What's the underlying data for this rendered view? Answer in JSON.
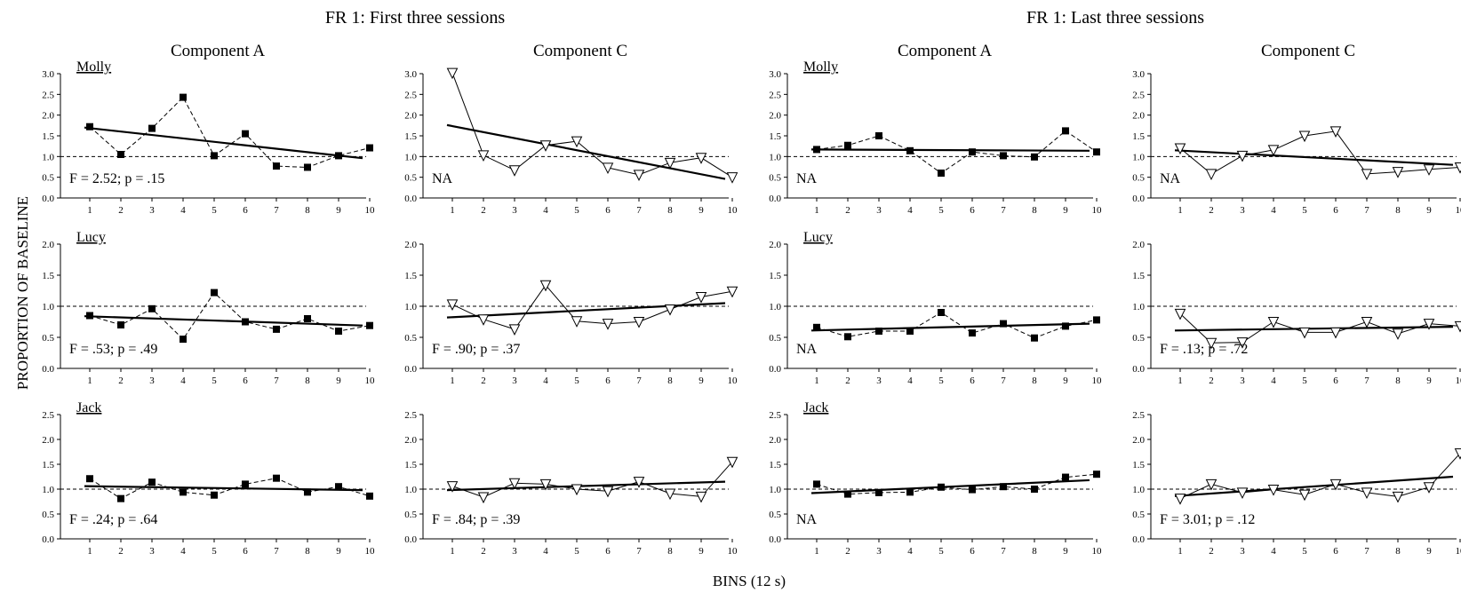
{
  "groups": [
    "FR 1: First three sessions",
    "FR 1: Last three sessions"
  ],
  "ylabel": "PROPORTION OF BASELINE",
  "xlabel": "BINS (12 s)",
  "chart_data": [
    {
      "type": "line",
      "group": "FR 1: First three sessions",
      "component": "Component A",
      "subject": "Molly",
      "stat": "F = 2.52; p = .15",
      "marker": "square",
      "dash": "dashed",
      "x": [
        1,
        2,
        3,
        4,
        5,
        6,
        7,
        8,
        9,
        10
      ],
      "values": [
        1.72,
        1.05,
        1.68,
        2.43,
        1.02,
        1.55,
        0.77,
        0.74,
        1.02,
        1.21
      ],
      "trend": [
        1.7,
        0.96
      ],
      "ylim": [
        0,
        3
      ],
      "yticks": [
        "0.0",
        "0.5",
        "1.0",
        "1.5",
        "2.0",
        "2.5",
        "3.0"
      ],
      "xticks": [
        "1",
        "2",
        "3",
        "4",
        "5",
        "6",
        "7",
        "8",
        "9",
        "10"
      ],
      "reference": 1.0
    },
    {
      "type": "line",
      "group": "FR 1: First three sessions",
      "component": "Component C",
      "subject": "",
      "stat": "NA",
      "marker": "triangle-down",
      "dash": "solid",
      "x": [
        1,
        2,
        3,
        4,
        5,
        6,
        7,
        8,
        9,
        10
      ],
      "values": [
        3.02,
        1.03,
        0.67,
        1.27,
        1.37,
        0.73,
        0.56,
        0.85,
        0.97,
        0.5
      ],
      "trend": [
        1.76,
        0.46
      ],
      "ylim": [
        0,
        3
      ],
      "yticks": [
        "0.0",
        "0.5",
        "1.0",
        "1.5",
        "2.0",
        "2.5",
        "3.0"
      ],
      "xticks": [
        "1",
        "2",
        "3",
        "4",
        "5",
        "6",
        "7",
        "8",
        "9",
        "10"
      ],
      "reference": 1.0
    },
    {
      "type": "line",
      "group": "FR 1: Last three sessions",
      "component": "Component A",
      "subject": "Molly",
      "stat": "NA",
      "marker": "square",
      "dash": "dashed",
      "x": [
        1,
        2,
        3,
        4,
        5,
        6,
        7,
        8,
        9,
        10
      ],
      "values": [
        1.17,
        1.27,
        1.5,
        1.14,
        0.6,
        1.11,
        1.02,
        0.99,
        1.62,
        1.11
      ],
      "trend": [
        1.17,
        1.14
      ],
      "ylim": [
        0,
        3
      ],
      "yticks": [
        "0.0",
        "0.5",
        "1.0",
        "1.5",
        "2.0",
        "2.5",
        "3.0"
      ],
      "xticks": [
        "1",
        "2",
        "3",
        "4",
        "5",
        "6",
        "7",
        "8",
        "9",
        "10"
      ],
      "reference": 1.0
    },
    {
      "type": "line",
      "group": "FR 1: Last three sessions",
      "component": "Component C",
      "subject": "",
      "stat": "NA",
      "marker": "triangle-down",
      "dash": "solid",
      "x": [
        1,
        2,
        3,
        4,
        5,
        6,
        7,
        8,
        9,
        10
      ],
      "values": [
        1.2,
        0.58,
        1.02,
        1.16,
        1.5,
        1.61,
        0.58,
        0.63,
        0.69,
        0.74
      ],
      "trend": [
        1.15,
        0.8
      ],
      "ylim": [
        0,
        3
      ],
      "yticks": [
        "0.0",
        "0.5",
        "1.0",
        "1.5",
        "2.0",
        "2.5",
        "3.0"
      ],
      "xticks": [
        "1",
        "2",
        "3",
        "4",
        "5",
        "6",
        "7",
        "8",
        "9",
        "10"
      ],
      "reference": 1.0
    },
    {
      "type": "line",
      "group": "FR 1: First three sessions",
      "component": "",
      "subject": "Lucy",
      "stat": "F = .53; p = .49",
      "marker": "square",
      "dash": "dashed",
      "x": [
        1,
        2,
        3,
        4,
        5,
        6,
        7,
        8,
        9,
        10
      ],
      "values": [
        0.85,
        0.7,
        0.96,
        0.47,
        1.22,
        0.75,
        0.63,
        0.8,
        0.6,
        0.69
      ],
      "trend": [
        0.84,
        0.69
      ],
      "ylim": [
        0,
        2
      ],
      "yticks": [
        "0.0",
        "0.5",
        "1.0",
        "1.5",
        "2.0"
      ],
      "xticks": [
        "1",
        "2",
        "3",
        "4",
        "5",
        "6",
        "7",
        "8",
        "9",
        "10"
      ],
      "reference": 1.0
    },
    {
      "type": "line",
      "group": "FR 1: First three sessions",
      "component": "",
      "subject": "",
      "stat": "F = .90; p = .37",
      "marker": "triangle-down",
      "dash": "solid",
      "x": [
        1,
        2,
        3,
        4,
        5,
        6,
        7,
        8,
        9,
        10
      ],
      "values": [
        1.03,
        0.79,
        0.63,
        1.34,
        0.76,
        0.72,
        0.75,
        0.95,
        1.15,
        1.24
      ],
      "trend": [
        0.82,
        1.05
      ],
      "ylim": [
        0,
        2
      ],
      "yticks": [
        "0.0",
        "0.5",
        "1.0",
        "1.5",
        "2.0"
      ],
      "xticks": [
        "1",
        "2",
        "3",
        "4",
        "5",
        "6",
        "7",
        "8",
        "9",
        "10"
      ],
      "reference": 1.0
    },
    {
      "type": "line",
      "group": "FR 1: Last three sessions",
      "component": "",
      "subject": "Lucy",
      "stat": "NA",
      "marker": "square",
      "dash": "dashed",
      "x": [
        1,
        2,
        3,
        4,
        5,
        6,
        7,
        8,
        9,
        10
      ],
      "values": [
        0.66,
        0.51,
        0.6,
        0.6,
        0.9,
        0.57,
        0.72,
        0.49,
        0.68,
        0.78
      ],
      "trend": [
        0.61,
        0.72
      ],
      "ylim": [
        0,
        2
      ],
      "yticks": [
        "0.0",
        "0.5",
        "1.0",
        "1.5",
        "2.0"
      ],
      "xticks": [
        "1",
        "2",
        "3",
        "4",
        "5",
        "6",
        "7",
        "8",
        "9",
        "10"
      ],
      "reference": 1.0
    },
    {
      "type": "line",
      "group": "FR 1: Last three sessions",
      "component": "",
      "subject": "",
      "stat": "F = .13; p = .72",
      "marker": "triangle-down",
      "dash": "solid",
      "x": [
        1,
        2,
        3,
        4,
        5,
        6,
        7,
        8,
        9,
        10
      ],
      "values": [
        0.88,
        0.41,
        0.42,
        0.75,
        0.58,
        0.58,
        0.75,
        0.56,
        0.72,
        0.68
      ],
      "trend": [
        0.61,
        0.67
      ],
      "ylim": [
        0,
        2
      ],
      "yticks": [
        "0.0",
        "0.5",
        "1.0",
        "1.5",
        "2.0"
      ],
      "xticks": [
        "1",
        "2",
        "3",
        "4",
        "5",
        "6",
        "7",
        "8",
        "9",
        "10"
      ],
      "reference": 1.0
    },
    {
      "type": "line",
      "group": "FR 1: First three sessions",
      "component": "",
      "subject": "Jack",
      "stat": "F = .24; p = .64",
      "marker": "square",
      "dash": "dashed",
      "x": [
        1,
        2,
        3,
        4,
        5,
        6,
        7,
        8,
        9,
        10
      ],
      "values": [
        1.21,
        0.81,
        1.14,
        0.94,
        0.88,
        1.1,
        1.22,
        0.94,
        1.05,
        0.86
      ],
      "trend": [
        1.06,
        0.98
      ],
      "ylim": [
        0,
        2.5
      ],
      "yticks": [
        "0.0",
        "0.5",
        "1.0",
        "1.5",
        "2.0",
        "2.5"
      ],
      "xticks": [
        "1",
        "2",
        "3",
        "4",
        "5",
        "6",
        "7",
        "8",
        "9",
        "10"
      ],
      "reference": 1.0
    },
    {
      "type": "line",
      "group": "FR 1: First three sessions",
      "component": "",
      "subject": "",
      "stat": "F = .84; p = .39",
      "marker": "triangle-down",
      "dash": "solid",
      "x": [
        1,
        2,
        3,
        4,
        5,
        6,
        7,
        8,
        9,
        10
      ],
      "values": [
        1.06,
        0.84,
        1.12,
        1.1,
        1.0,
        0.96,
        1.15,
        0.91,
        0.85,
        1.55
      ],
      "trend": [
        0.98,
        1.15
      ],
      "ylim": [
        0,
        2.5
      ],
      "yticks": [
        "0.0",
        "0.5",
        "1.0",
        "1.5",
        "2.0",
        "2.5"
      ],
      "xticks": [
        "1",
        "2",
        "3",
        "4",
        "5",
        "6",
        "7",
        "8",
        "9",
        "10"
      ],
      "reference": 1.0
    },
    {
      "type": "line",
      "group": "FR 1: Last three sessions",
      "component": "",
      "subject": "Jack",
      "stat": "NA",
      "marker": "square",
      "dash": "dashed",
      "x": [
        1,
        2,
        3,
        4,
        5,
        6,
        7,
        8,
        9,
        10
      ],
      "values": [
        1.1,
        0.9,
        0.93,
        0.94,
        1.04,
        0.99,
        1.05,
        1.0,
        1.24,
        1.3
      ],
      "trend": [
        0.92,
        1.18
      ],
      "ylim": [
        0,
        2.5
      ],
      "yticks": [
        "0.0",
        "0.5",
        "1.0",
        "1.5",
        "2.0",
        "2.5"
      ],
      "xticks": [
        "1",
        "2",
        "3",
        "4",
        "5",
        "6",
        "7",
        "8",
        "9",
        "10"
      ],
      "reference": 1.0
    },
    {
      "type": "line",
      "group": "FR 1: Last three sessions",
      "component": "",
      "subject": "",
      "stat": "F = 3.01; p = .12",
      "marker": "triangle-down",
      "dash": "solid",
      "x": [
        1,
        2,
        3,
        4,
        5,
        6,
        7,
        8,
        9,
        10
      ],
      "values": [
        0.81,
        1.1,
        0.93,
        0.99,
        0.89,
        1.1,
        0.93,
        0.85,
        1.04,
        1.72
      ],
      "trend": [
        0.86,
        1.25
      ],
      "ylim": [
        0,
        2.5
      ],
      "yticks": [
        "0.0",
        "0.5",
        "1.0",
        "1.5",
        "2.0",
        "2.5"
      ],
      "xticks": [
        "1",
        "2",
        "3",
        "4",
        "5",
        "6",
        "7",
        "8",
        "9",
        "10"
      ],
      "reference": 1.0
    }
  ]
}
